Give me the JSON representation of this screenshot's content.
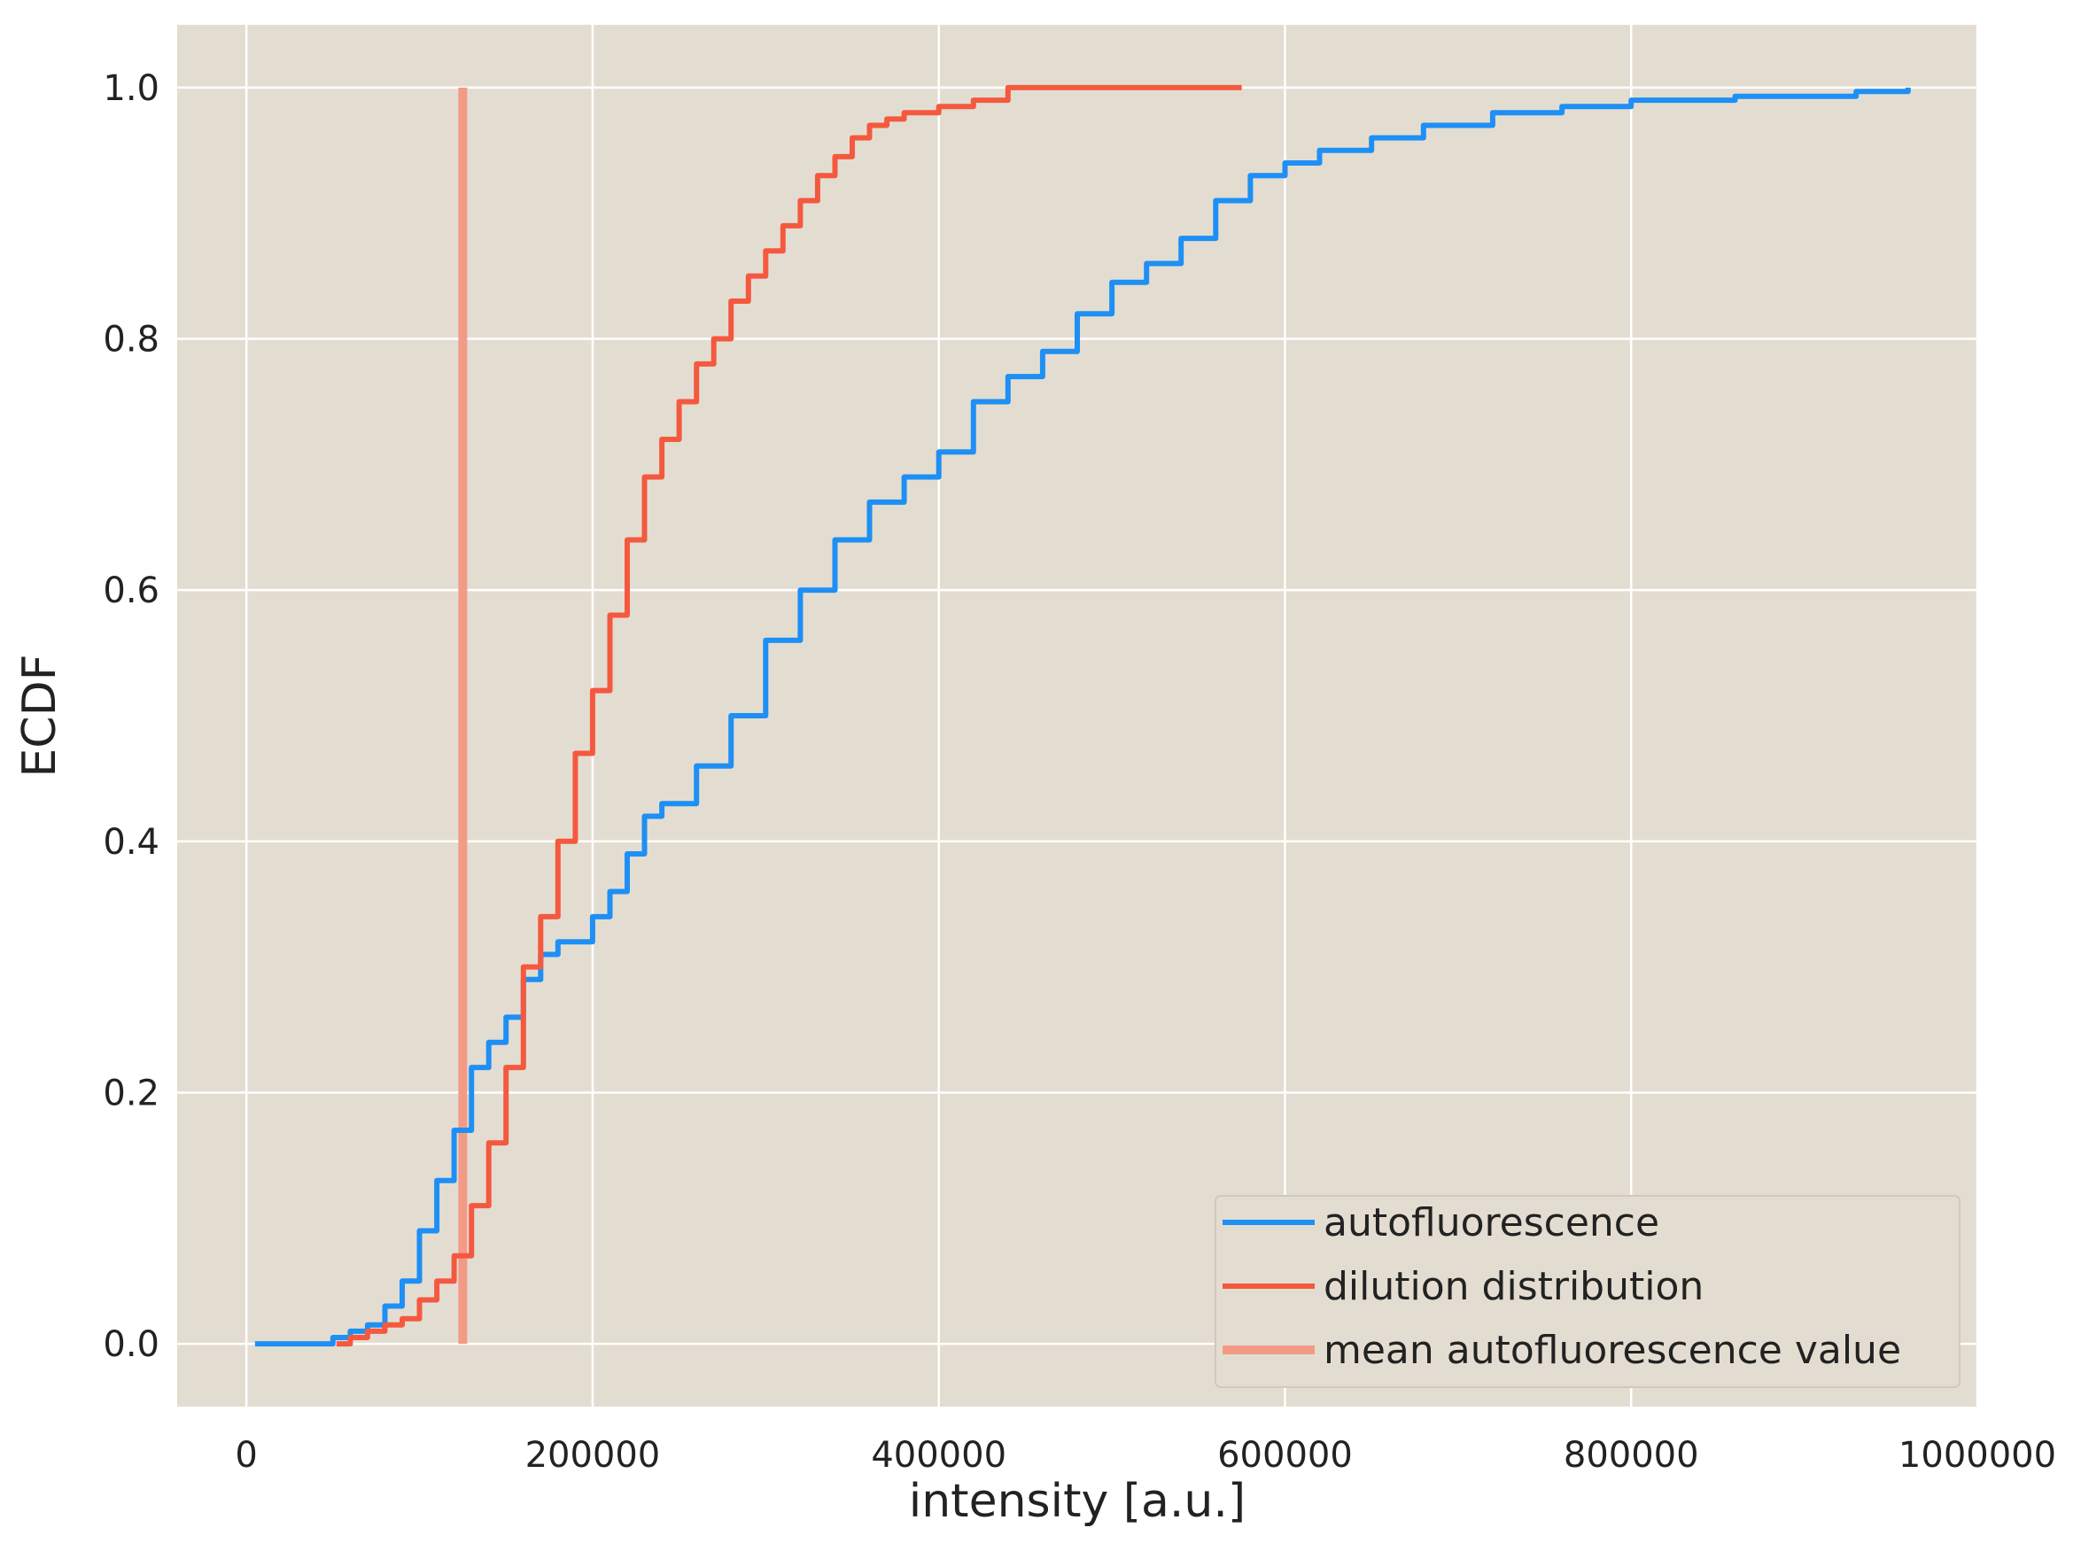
{
  "chart_data": {
    "type": "line",
    "title": "",
    "xlabel": "intensity [a.u.]",
    "ylabel": "ECDF",
    "xlim": [
      -40000,
      1000000
    ],
    "ylim": [
      -0.05,
      1.05
    ],
    "x_ticks": [
      0,
      200000,
      400000,
      600000,
      800000,
      1000000
    ],
    "x_tick_labels": [
      "0",
      "200000",
      "400000",
      "600000",
      "800000",
      "1000000"
    ],
    "y_ticks": [
      0.0,
      0.2,
      0.4,
      0.6,
      0.8,
      1.0
    ],
    "y_tick_labels": [
      "0.0",
      "0.2",
      "0.4",
      "0.6",
      "0.8",
      "1.0"
    ],
    "grid": true,
    "legend_position": "lower-right",
    "background_color": "#e3ddd1",
    "series": [
      {
        "name": "autofluorescence",
        "color": "#1e8ff5",
        "points": [
          [
            5000,
            0.0
          ],
          [
            40000,
            0.0
          ],
          [
            50000,
            0.005
          ],
          [
            60000,
            0.01
          ],
          [
            70000,
            0.015
          ],
          [
            80000,
            0.03
          ],
          [
            90000,
            0.05
          ],
          [
            100000,
            0.09
          ],
          [
            110000,
            0.13
          ],
          [
            120000,
            0.17
          ],
          [
            130000,
            0.22
          ],
          [
            140000,
            0.24
          ],
          [
            150000,
            0.26
          ],
          [
            160000,
            0.29
          ],
          [
            170000,
            0.31
          ],
          [
            180000,
            0.32
          ],
          [
            200000,
            0.34
          ],
          [
            210000,
            0.36
          ],
          [
            220000,
            0.39
          ],
          [
            230000,
            0.42
          ],
          [
            240000,
            0.43
          ],
          [
            260000,
            0.46
          ],
          [
            280000,
            0.5
          ],
          [
            300000,
            0.56
          ],
          [
            320000,
            0.6
          ],
          [
            340000,
            0.64
          ],
          [
            360000,
            0.67
          ],
          [
            380000,
            0.69
          ],
          [
            400000,
            0.71
          ],
          [
            420000,
            0.75
          ],
          [
            440000,
            0.77
          ],
          [
            460000,
            0.79
          ],
          [
            480000,
            0.82
          ],
          [
            500000,
            0.845
          ],
          [
            520000,
            0.86
          ],
          [
            540000,
            0.88
          ],
          [
            560000,
            0.91
          ],
          [
            580000,
            0.93
          ],
          [
            600000,
            0.94
          ],
          [
            620000,
            0.95
          ],
          [
            650000,
            0.96
          ],
          [
            680000,
            0.97
          ],
          [
            720000,
            0.98
          ],
          [
            760000,
            0.985
          ],
          [
            800000,
            0.99
          ],
          [
            860000,
            0.993
          ],
          [
            930000,
            0.997
          ],
          [
            960000,
            1.0
          ]
        ]
      },
      {
        "name": "dilution distribution",
        "color": "#f4593f",
        "points": [
          [
            52000,
            0.0
          ],
          [
            60000,
            0.005
          ],
          [
            70000,
            0.01
          ],
          [
            80000,
            0.015
          ],
          [
            90000,
            0.02
          ],
          [
            100000,
            0.035
          ],
          [
            110000,
            0.05
          ],
          [
            120000,
            0.07
          ],
          [
            130000,
            0.11
          ],
          [
            140000,
            0.16
          ],
          [
            150000,
            0.22
          ],
          [
            160000,
            0.3
          ],
          [
            170000,
            0.34
          ],
          [
            180000,
            0.4
          ],
          [
            190000,
            0.47
          ],
          [
            200000,
            0.52
          ],
          [
            210000,
            0.58
          ],
          [
            220000,
            0.64
          ],
          [
            230000,
            0.69
          ],
          [
            240000,
            0.72
          ],
          [
            250000,
            0.75
          ],
          [
            260000,
            0.78
          ],
          [
            270000,
            0.8
          ],
          [
            280000,
            0.83
          ],
          [
            290000,
            0.85
          ],
          [
            300000,
            0.87
          ],
          [
            310000,
            0.89
          ],
          [
            320000,
            0.91
          ],
          [
            330000,
            0.93
          ],
          [
            340000,
            0.945
          ],
          [
            350000,
            0.96
          ],
          [
            360000,
            0.97
          ],
          [
            370000,
            0.975
          ],
          [
            380000,
            0.98
          ],
          [
            400000,
            0.985
          ],
          [
            420000,
            0.99
          ],
          [
            440000,
            1.0
          ],
          [
            575000,
            1.0
          ]
        ]
      }
    ],
    "vertical_line": {
      "name": "mean autofluorescence value",
      "color": "#f39a87",
      "x": 125000,
      "y_range": [
        0.0,
        1.0
      ]
    }
  }
}
